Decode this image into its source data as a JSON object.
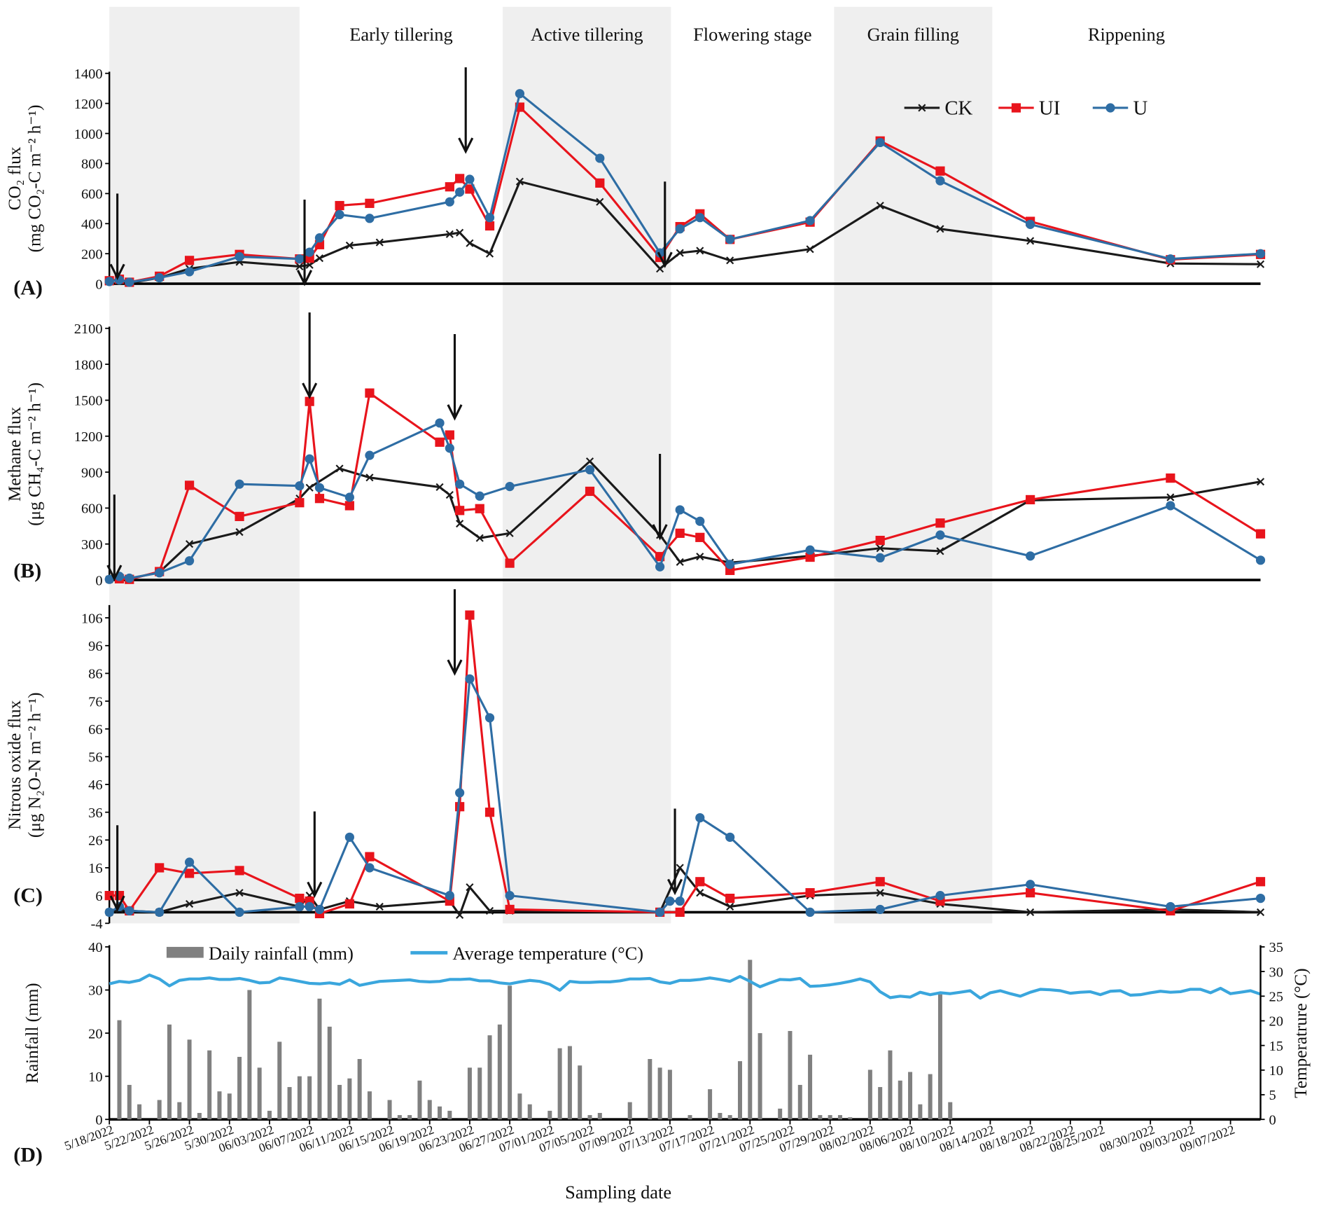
{
  "chart_data": [
    {
      "type": "line",
      "panel": "(A)",
      "ylabel": [
        "CO₂ flux",
        "(mg CO₂-C m⁻² h⁻¹)"
      ],
      "ylim": [
        0,
        1400
      ],
      "yticks": [
        0,
        200,
        400,
        600,
        800,
        1000,
        1200,
        1400
      ],
      "xlim": [
        0,
        115
      ],
      "legend": "upper right",
      "stages": [
        {
          "from": 0,
          "to": 19,
          "shaded": true
        },
        {
          "label": "Early tillering",
          "from": 19,
          "to": 39.3,
          "shaded": false
        },
        {
          "label": "Active tillering",
          "from": 39.3,
          "to": 56.1,
          "shaded": true
        },
        {
          "label": "Flowering stage",
          "from": 56.1,
          "to": 72.4,
          "shaded": false
        },
        {
          "label": "Grain filling",
          "from": 72.4,
          "to": 88.2,
          "shaded": true
        },
        {
          "label": "Rippening",
          "from": 88.2,
          "to": 115,
          "shaded": false
        }
      ],
      "arrows": [
        {
          "x": 0.8,
          "y": 40
        },
        {
          "x": 19.5,
          "y": 0
        },
        {
          "x": 35.6,
          "y": 880
        },
        {
          "x": 55.5,
          "y": 120
        }
      ],
      "series": [
        {
          "name": "CK",
          "color": "#1a1a1a",
          "marker": "x",
          "x": [
            0,
            1,
            2,
            5,
            8,
            13,
            19,
            20,
            21,
            24,
            27,
            34,
            35,
            36,
            38,
            41,
            49,
            55,
            57,
            59,
            62,
            70,
            77,
            83,
            92,
            106,
            115
          ],
          "values": [
            15,
            25,
            5,
            40,
            100,
            145,
            115,
            125,
            170,
            255,
            275,
            330,
            340,
            270,
            200,
            680,
            545,
            100,
            205,
            220,
            155,
            230,
            520,
            365,
            285,
            135,
            130
          ]
        },
        {
          "name": "UI",
          "color": "#e8141c",
          "marker": "square",
          "x": [
            0,
            1,
            2,
            5,
            8,
            13,
            19,
            20,
            21,
            23,
            26,
            34,
            35,
            36,
            38,
            41,
            49,
            55,
            57,
            59,
            62,
            70,
            77,
            83,
            92,
            106,
            115
          ],
          "values": [
            20,
            30,
            10,
            50,
            155,
            195,
            165,
            170,
            260,
            520,
            535,
            645,
            700,
            630,
            385,
            1175,
            670,
            175,
            380,
            465,
            295,
            410,
            950,
            750,
            415,
            160,
            195
          ]
        },
        {
          "name": "U",
          "color": "#2e6da4",
          "marker": "circle",
          "x": [
            0,
            1,
            2,
            5,
            8,
            13,
            19,
            20,
            21,
            23,
            26,
            34,
            35,
            36,
            38,
            41,
            49,
            55,
            57,
            59,
            62,
            70,
            77,
            83,
            92,
            106,
            115
          ],
          "values": [
            15,
            25,
            10,
            40,
            80,
            180,
            165,
            210,
            305,
            460,
            435,
            545,
            610,
            695,
            440,
            1265,
            835,
            205,
            365,
            440,
            295,
            420,
            940,
            685,
            395,
            165,
            200
          ]
        }
      ]
    },
    {
      "type": "line",
      "panel": "(B)",
      "ylabel": [
        "Methane flux",
        "(μg CH₄-C m⁻² h⁻¹)"
      ],
      "ylim": [
        0,
        2100
      ],
      "yticks": [
        0,
        300,
        600,
        900,
        1200,
        1500,
        1800,
        2100
      ],
      "xlim": [
        0,
        115
      ],
      "arrows": [
        {
          "x": 0.5,
          "y": 10
        },
        {
          "x": 20,
          "y": 1530
        },
        {
          "x": 34.5,
          "y": 1350
        },
        {
          "x": 55,
          "y": 350
        }
      ],
      "series": [
        {
          "color": "#1a1a1a",
          "marker": "x",
          "x": [
            0,
            1,
            2,
            5,
            8,
            13,
            19,
            20,
            23,
            26,
            33,
            34,
            35,
            37,
            40,
            48,
            55,
            57,
            59,
            62,
            70,
            77,
            83,
            92,
            106,
            115
          ],
          "values": [
            5,
            20,
            10,
            65,
            300,
            400,
            680,
            770,
            930,
            855,
            775,
            710,
            470,
            350,
            390,
            990,
            375,
            150,
            195,
            145,
            200,
            265,
            240,
            665,
            690,
            820
          ]
        },
        {
          "color": "#e8141c",
          "marker": "square",
          "x": [
            1,
            2,
            5,
            8,
            13,
            19,
            20,
            21,
            24,
            26,
            33,
            34,
            35,
            37,
            40,
            48,
            55,
            57,
            59,
            62,
            70,
            77,
            83,
            92,
            106,
            115
          ],
          "values": [
            10,
            5,
            70,
            790,
            530,
            645,
            1490,
            680,
            620,
            1560,
            1150,
            1210,
            580,
            595,
            140,
            740,
            195,
            390,
            355,
            80,
            190,
            330,
            475,
            670,
            850,
            385
          ]
        },
        {
          "color": "#2e6da4",
          "marker": "circle",
          "x": [
            0,
            1,
            2,
            5,
            8,
            13,
            19,
            20,
            21,
            24,
            26,
            33,
            34,
            35,
            37,
            40,
            48,
            55,
            57,
            59,
            62,
            70,
            77,
            83,
            92,
            106,
            115
          ],
          "values": [
            5,
            30,
            15,
            60,
            160,
            800,
            785,
            1010,
            770,
            690,
            1040,
            1310,
            1100,
            800,
            700,
            780,
            920,
            110,
            585,
            490,
            130,
            250,
            185,
            375,
            200,
            620,
            165
          ]
        }
      ]
    },
    {
      "type": "line",
      "panel": "(C)",
      "ylabel": [
        "Nitrous oxide flux",
        "(μg N₂O-N m⁻² h⁻¹)"
      ],
      "ylim": [
        -4,
        110
      ],
      "yticks": [
        -4,
        6,
        16,
        26,
        36,
        46,
        56,
        66,
        76,
        86,
        96,
        106
      ],
      "xlim": [
        0,
        115
      ],
      "arrows": [
        {
          "x": 0.8,
          "y": 1
        },
        {
          "x": 20.5,
          "y": 6
        },
        {
          "x": 34.5,
          "y": 86
        },
        {
          "x": 56.5,
          "y": 7
        }
      ],
      "series": [
        {
          "color": "#1a1a1a",
          "marker": "x",
          "x": [
            0,
            1,
            2,
            5,
            8,
            13,
            19,
            20,
            21,
            24,
            27,
            34,
            35,
            36,
            38,
            40,
            55,
            57,
            59,
            62,
            70,
            77,
            83,
            92,
            106,
            115
          ],
          "values": [
            0,
            1,
            0.5,
            0,
            3,
            7,
            2,
            6,
            1,
            4,
            2,
            4,
            -1,
            9,
            0.5,
            0.5,
            0,
            16,
            7,
            2,
            6,
            7,
            3,
            0,
            1,
            0
          ]
        },
        {
          "color": "#e8141c",
          "marker": "square",
          "x": [
            0,
            1,
            2,
            5,
            8,
            13,
            19,
            20,
            21,
            24,
            26,
            34,
            35,
            36,
            38,
            40,
            55,
            57,
            59,
            62,
            70,
            77,
            83,
            92,
            106,
            115
          ],
          "values": [
            6,
            6,
            0.5,
            16,
            14,
            15,
            5,
            4,
            -0.5,
            3,
            20,
            4,
            38,
            107,
            36,
            1,
            0,
            0,
            11,
            5,
            7,
            11,
            4,
            7,
            0.5,
            11
          ]
        },
        {
          "color": "#2e6da4",
          "marker": "circle",
          "x": [
            0,
            1,
            2,
            5,
            8,
            13,
            19,
            20,
            21,
            24,
            26,
            34,
            35,
            36,
            38,
            40,
            55,
            56,
            57,
            59,
            62,
            70,
            77,
            83,
            92,
            106,
            115
          ],
          "values": [
            0,
            2,
            0.5,
            0,
            18,
            0,
            2,
            2,
            1,
            27,
            16,
            6,
            43,
            84,
            70,
            6,
            0,
            4,
            4,
            34,
            27,
            0,
            1,
            6,
            10,
            2,
            5
          ]
        }
      ]
    },
    {
      "type": "bar",
      "panel": "(D)",
      "ylabel": [
        "Rainfall (mm)"
      ],
      "y2label": "Temperatrure (°C)",
      "xlabel": "Sampling date",
      "ylim": [
        0,
        40
      ],
      "yticks": [
        0,
        10,
        20,
        30,
        40
      ],
      "y2lim": [
        0,
        35
      ],
      "y2ticks": [
        0,
        5,
        10,
        15,
        20,
        25,
        30,
        35
      ],
      "xlim": [
        0,
        115
      ],
      "xticks": [
        {
          "value": 0,
          "label": "5/18/2022"
        },
        {
          "value": 4,
          "label": "5/22/2022"
        },
        {
          "value": 8,
          "label": "5/26/2022"
        },
        {
          "value": 12,
          "label": "5/30/2022"
        },
        {
          "value": 16,
          "label": "06/03/2022"
        },
        {
          "value": 20,
          "label": "06/07/2022"
        },
        {
          "value": 24,
          "label": "06/11/2022"
        },
        {
          "value": 28,
          "label": "06/15/2022"
        },
        {
          "value": 32,
          "label": "06/19/2022"
        },
        {
          "value": 36,
          "label": "06/23/2022"
        },
        {
          "value": 40,
          "label": "06/27/2022"
        },
        {
          "value": 44,
          "label": "07/01/2022"
        },
        {
          "value": 48,
          "label": "07/05/2022"
        },
        {
          "value": 52,
          "label": "07/09/2022"
        },
        {
          "value": 56,
          "label": "07/13/2022"
        },
        {
          "value": 60,
          "label": "07/17/2022"
        },
        {
          "value": 64,
          "label": "07/21/2022"
        },
        {
          "value": 68,
          "label": "07/25/2022"
        },
        {
          "value": 72,
          "label": "07/29/2022"
        },
        {
          "value": 76,
          "label": "08/02/2022"
        },
        {
          "value": 80,
          "label": "08/06/2022"
        },
        {
          "value": 84,
          "label": "08/10/2022"
        },
        {
          "value": 88,
          "label": "08/14/2022"
        },
        {
          "value": 92,
          "label": "08/18/2022"
        },
        {
          "value": 96,
          "label": "08/22/2022"
        },
        {
          "value": 99,
          "label": "08/25/2022"
        },
        {
          "value": 104,
          "label": "08/30/2022"
        },
        {
          "value": 108,
          "label": "09/03/2022"
        },
        {
          "value": 112,
          "label": "09/07/2022"
        }
      ],
      "legend": "upper left",
      "series": [
        {
          "name": "Daily rainfall (mm)",
          "type": "bar",
          "color": "#808080",
          "x": [
            1,
            2,
            3,
            5,
            6,
            7,
            8,
            9,
            10,
            11,
            12,
            13,
            14,
            15,
            16,
            17,
            18,
            19,
            20,
            21,
            22,
            23,
            24,
            25,
            26,
            28,
            29,
            30,
            31,
            32,
            33,
            34,
            36,
            37,
            38,
            39,
            40,
            41,
            42,
            44,
            45,
            46,
            47,
            48,
            49,
            52,
            54,
            55,
            56,
            58,
            60,
            61,
            62,
            63,
            64,
            65,
            67,
            68,
            69,
            70,
            71,
            72,
            73,
            74,
            76,
            77,
            78,
            79,
            80,
            81,
            82,
            83,
            84
          ],
          "values": [
            23,
            8,
            3.5,
            4.5,
            22,
            4,
            18.5,
            1.5,
            16,
            6.5,
            6,
            14.5,
            30,
            12,
            2,
            18,
            7.5,
            10,
            10,
            28,
            21.5,
            8,
            9.5,
            14,
            6.5,
            4.5,
            1,
            1,
            9,
            4.5,
            3,
            2,
            12,
            12,
            19.5,
            22,
            31,
            6,
            3.5,
            2,
            16.5,
            17,
            12.5,
            1,
            1.5,
            4,
            14,
            12,
            11.5,
            1,
            7,
            1.5,
            1,
            13.5,
            37,
            20,
            2.5,
            20.5,
            8,
            15,
            1,
            1,
            1,
            0.5,
            11.5,
            7.5,
            16,
            9,
            11,
            3.5,
            10.5,
            29,
            4
          ]
        },
        {
          "name": "Average temperature (°C)",
          "type": "line",
          "axis": "y2",
          "color": "#3aa6dd",
          "values": [
            27.5,
            28,
            27.8,
            28.2,
            29.3,
            28.5,
            27.1,
            28.2,
            28.5,
            28.5,
            28.7,
            28.4,
            28.4,
            28.6,
            28.2,
            27.7,
            27.8,
            28.7,
            28.4,
            28,
            27.6,
            27.5,
            27.7,
            27.4,
            28.3,
            27.2,
            27.6,
            28,
            28.1,
            28.2,
            28.3,
            28,
            27.9,
            28,
            28.4,
            28.4,
            28.5,
            28.1,
            28.1,
            27.7,
            27.5,
            27.9,
            28.2,
            28,
            27.4,
            26.2,
            28,
            27.8,
            27.8,
            27.9,
            27.9,
            28.1,
            28.5,
            28.5,
            28.6,
            27.9,
            27.6,
            28.2,
            28.2,
            28.4,
            28.7,
            28.4,
            28,
            29,
            28,
            26.9,
            27.7,
            28.4,
            28.3,
            28.6,
            27,
            27.1,
            27.3,
            27.6,
            28,
            28.5,
            27.9,
            25.9,
            24.7,
            25,
            24.8,
            25.8,
            25.3,
            25.7,
            25.5,
            25.8,
            26.1,
            24.6,
            25.7,
            26.1,
            25.5,
            25,
            25.8,
            26.4,
            26.3,
            26.1,
            25.6,
            25.8,
            25.9,
            25.3,
            26,
            26.1,
            25.2,
            25.3,
            25.7,
            26,
            25.8,
            25.9,
            26.4,
            26.4,
            25.7,
            26.6,
            25.5,
            25.8,
            26.1,
            25.4
          ]
        }
      ]
    }
  ]
}
